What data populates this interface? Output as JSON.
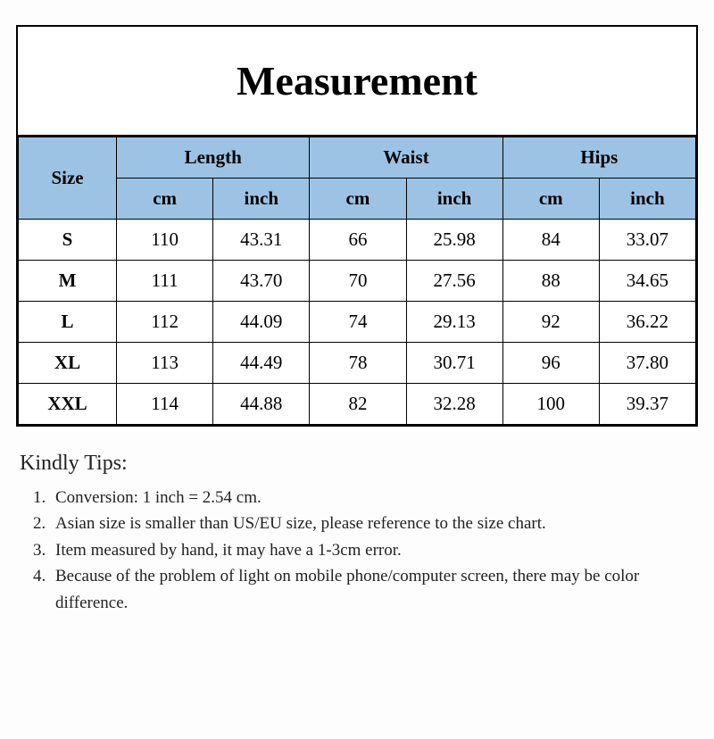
{
  "title": "Measurement",
  "table": {
    "type": "table",
    "header_bg": "#9cc3e4",
    "border_color": "#000000",
    "size_label": "Size",
    "groups": [
      "Length",
      "Waist",
      "Hips"
    ],
    "units": [
      "cm",
      "inch",
      "cm",
      "inch",
      "cm",
      "inch"
    ],
    "rows": [
      {
        "size": "S",
        "cells": [
          "110",
          "43.31",
          "66",
          "25.98",
          "84",
          "33.07"
        ]
      },
      {
        "size": "M",
        "cells": [
          "111",
          "43.70",
          "70",
          "27.56",
          "88",
          "34.65"
        ]
      },
      {
        "size": "L",
        "cells": [
          "112",
          "44.09",
          "74",
          "29.13",
          "92",
          "36.22"
        ]
      },
      {
        "size": "XL",
        "cells": [
          "113",
          "44.49",
          "78",
          "30.71",
          "96",
          "37.80"
        ]
      },
      {
        "size": "XXL",
        "cells": [
          "114",
          "44.88",
          "82",
          "32.28",
          "100",
          "39.37"
        ]
      }
    ]
  },
  "tips": {
    "title": "Kindly Tips:",
    "items": [
      "Conversion: 1 inch = 2.54 cm.",
      "Asian size is smaller than US/EU size, please reference to the size chart.",
      "Item measured by hand, it may have a 1-3cm error.",
      "Because of the problem of light on mobile phone/computer screen, there may be color difference."
    ]
  }
}
